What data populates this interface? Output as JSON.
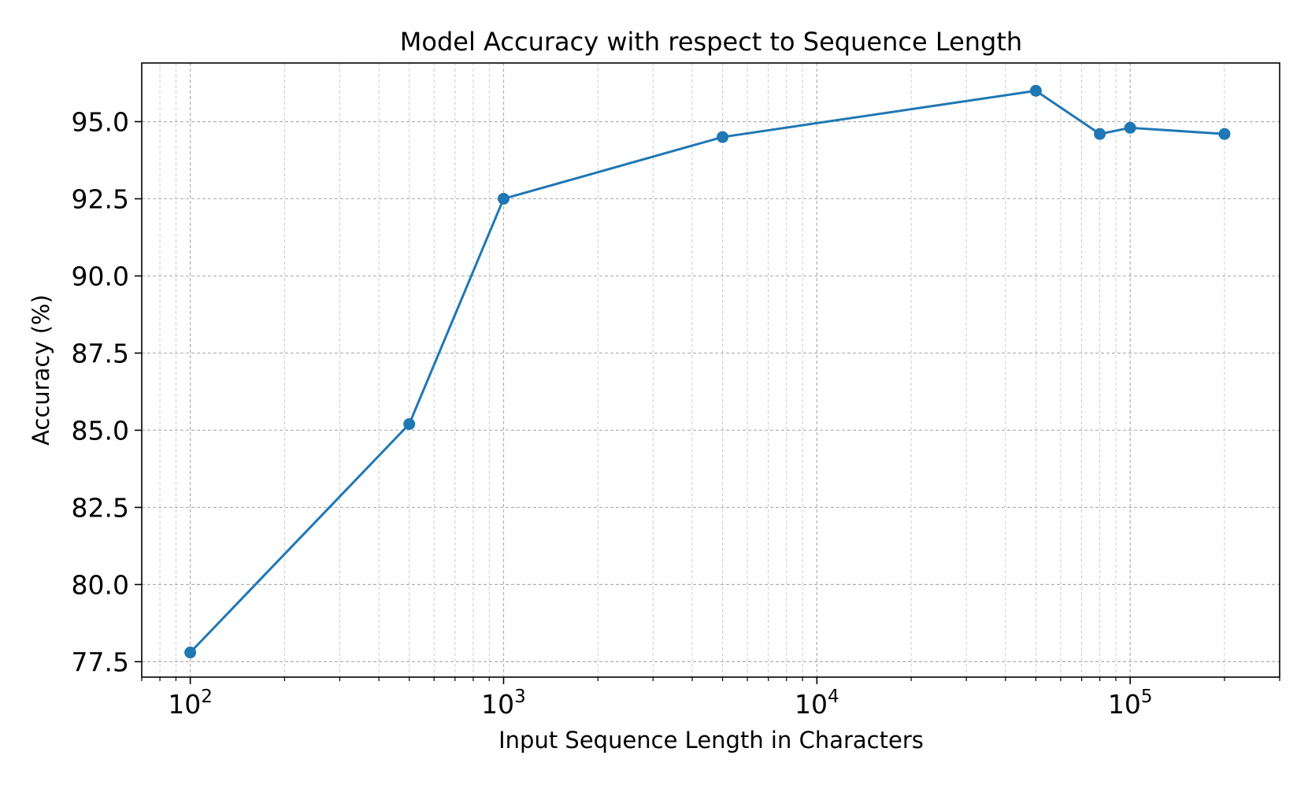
{
  "chart_data": {
    "type": "line",
    "title": "Model Accuracy with respect to Sequence Length",
    "xlabel": "Input Sequence Length in Characters",
    "ylabel": "Accuracy (%)",
    "x_scale": "log",
    "xlim": [
      70,
      300000
    ],
    "ylim": [
      77.0,
      96.9
    ],
    "grid": true,
    "color": "#1f77b4",
    "x_ticks": [
      {
        "value": 100,
        "base": "10",
        "exp": "2"
      },
      {
        "value": 1000,
        "base": "10",
        "exp": "3"
      },
      {
        "value": 10000,
        "base": "10",
        "exp": "4"
      },
      {
        "value": 100000,
        "base": "10",
        "exp": "5"
      }
    ],
    "y_ticks": [
      "77.5",
      "80.0",
      "82.5",
      "85.0",
      "87.5",
      "90.0",
      "92.5",
      "95.0"
    ],
    "series": [
      {
        "x": [
          100,
          500,
          1000,
          5000,
          50000,
          80000,
          100000,
          200000
        ],
        "y": [
          77.8,
          85.2,
          92.5,
          94.5,
          96.0,
          94.6,
          94.8,
          94.6
        ]
      }
    ]
  }
}
